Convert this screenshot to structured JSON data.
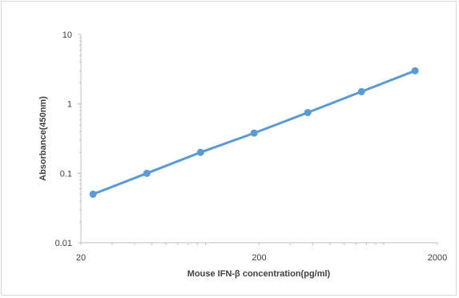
{
  "chart_data": {
    "type": "line",
    "title": "",
    "xlabel": "Mouse IFN-β concentration(pg/ml)",
    "ylabel": "Absorbance(450nm)",
    "x_scale": "log",
    "y_scale": "log",
    "xlim": [
      20,
      2000
    ],
    "ylim": [
      0.01,
      10
    ],
    "x_ticks": [
      "20",
      "200",
      "2000"
    ],
    "y_ticks": [
      "10",
      "1",
      "0.1",
      "0.01"
    ],
    "grid": false,
    "legend": "none",
    "series": [
      {
        "color": "#5b9bd5",
        "x": [
          23.4,
          46.9,
          93.8,
          187.5,
          375,
          750,
          1500
        ],
        "y": [
          0.05,
          0.1,
          0.2,
          0.38,
          0.75,
          1.5,
          3.0
        ]
      }
    ]
  }
}
